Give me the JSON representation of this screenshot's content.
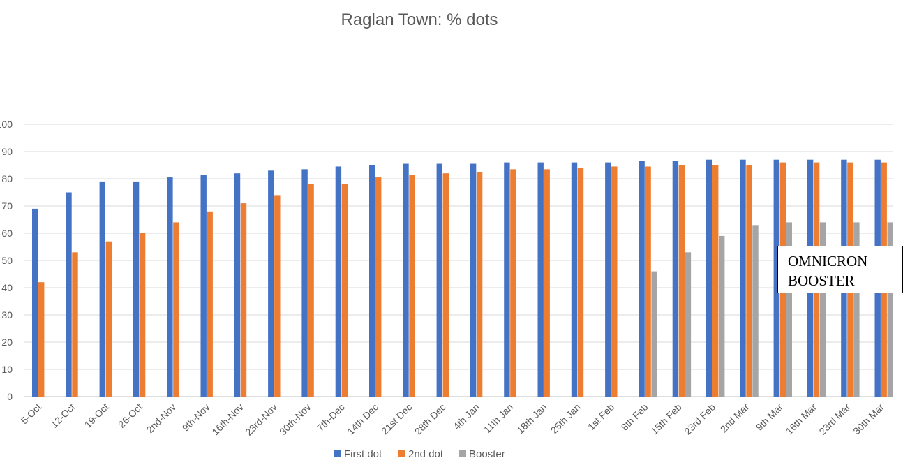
{
  "chart_data": {
    "type": "bar",
    "title": "Raglan Town: % dots",
    "xlabel": "",
    "ylabel": "",
    "ylim": [
      0,
      100
    ],
    "yticks": [
      0,
      10,
      20,
      30,
      40,
      50,
      60,
      70,
      80,
      90,
      100
    ],
    "grid": true,
    "legend_position": "bottom",
    "categories": [
      "5-Oct",
      "12-Oct",
      "19-Oct",
      "26-Oct",
      "2nd-Nov",
      "9th-Nov",
      "16th-Nov",
      "23rd-Nov",
      "30th-Nov",
      "7th-Dec",
      "14th Dec",
      "21st Dec",
      "28th Dec",
      "4th Jan",
      "11th Jan",
      "18th Jan",
      "25th Jan",
      "1st Feb",
      "8th Feb",
      "15th Feb",
      "23rd Feb",
      "2nd Mar",
      "9th Mar",
      "16th Mar",
      "23rd Mar",
      "30th Mar"
    ],
    "series": [
      {
        "name": "First dot",
        "color": "#4472c4",
        "values": [
          69,
          75,
          79,
          79,
          80.5,
          81.5,
          82,
          83,
          83.5,
          84.5,
          85,
          85.5,
          85.5,
          85.5,
          86,
          86,
          86,
          86,
          86.5,
          86.5,
          87,
          87,
          87,
          87,
          87,
          87
        ]
      },
      {
        "name": "2nd dot",
        "color": "#ed7d31",
        "values": [
          42,
          53,
          57,
          60,
          64,
          68,
          71,
          74,
          78,
          78,
          80.5,
          81.5,
          82,
          82.5,
          83.5,
          83.5,
          84,
          84.5,
          84.5,
          85,
          85,
          85,
          86,
          86,
          86,
          86
        ]
      },
      {
        "name": "Booster",
        "color": "#a5a5a5",
        "values": [
          null,
          null,
          null,
          null,
          null,
          null,
          null,
          null,
          null,
          null,
          null,
          null,
          null,
          null,
          null,
          null,
          null,
          null,
          46,
          53,
          59,
          63,
          64,
          64,
          64,
          64
        ]
      }
    ],
    "annotation": {
      "lines": [
        "OMNICRON",
        "BOOSTER"
      ]
    }
  }
}
